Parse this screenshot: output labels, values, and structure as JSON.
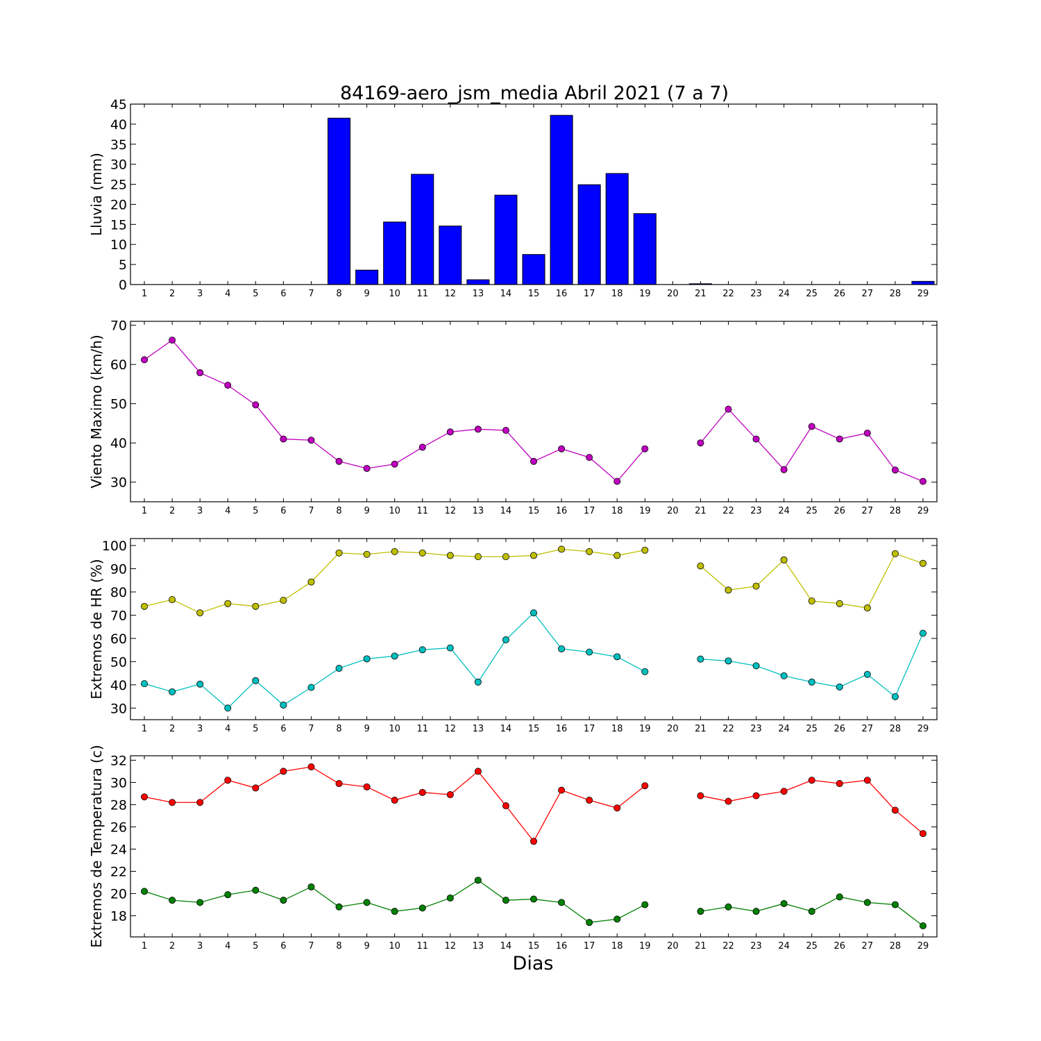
{
  "title": "84169-aero_jsm_media Abril 2021  (7 a 7)",
  "xlabel": "Dias",
  "colors": {
    "bar": "#0000ff",
    "wind": "#bf00bf",
    "hr_max": "#bfbf00",
    "hr_min": "#00bfbf",
    "temp_max": "#ff0000",
    "temp_min": "#008000"
  },
  "chart_data": [
    {
      "id": "rain",
      "type": "bar",
      "ylabel": "Lluvia (mm)",
      "ylim": [
        0,
        45
      ],
      "yticks": [
        0,
        5,
        10,
        15,
        20,
        25,
        30,
        35,
        40,
        45
      ],
      "categories": [
        "1",
        "2",
        "3",
        "4",
        "5",
        "6",
        "7",
        "8",
        "9",
        "10",
        "11",
        "12",
        "13",
        "14",
        "15",
        "16",
        "17",
        "18",
        "19",
        "20",
        "21",
        "22",
        "23",
        "24",
        "25",
        "26",
        "27",
        "28",
        "29"
      ],
      "values": [
        0,
        0,
        0,
        0,
        0,
        0,
        0,
        41.5,
        3.6,
        15.6,
        27.5,
        14.6,
        1.2,
        22.3,
        7.5,
        42.2,
        24.9,
        27.7,
        17.7,
        null,
        0.2,
        0,
        0,
        0,
        0,
        0,
        0,
        0,
        0.8
      ]
    },
    {
      "id": "wind",
      "type": "line",
      "ylabel": "Viento Maximo (km/h)",
      "ylim": [
        25,
        71
      ],
      "yticks": [
        30,
        40,
        50,
        60,
        70
      ],
      "x": [
        1,
        2,
        3,
        4,
        5,
        6,
        7,
        8,
        9,
        10,
        11,
        12,
        13,
        14,
        15,
        16,
        17,
        18,
        19,
        20,
        21,
        22,
        23,
        24,
        25,
        26,
        27,
        28,
        29
      ],
      "series": [
        {
          "key": "wind",
          "values": [
            61.2,
            66.2,
            57.9,
            54.7,
            49.7,
            41.0,
            40.7,
            35.3,
            33.5,
            34.6,
            38.9,
            42.8,
            43.5,
            43.2,
            35.3,
            38.5,
            36.3,
            30.2,
            38.5,
            null,
            40.0,
            48.6,
            41.0,
            33.2,
            44.2,
            41.0,
            42.5,
            33.1,
            30.2
          ]
        }
      ]
    },
    {
      "id": "hr",
      "type": "line",
      "ylabel": "Extremos de HR (%)",
      "ylim": [
        25,
        103
      ],
      "yticks": [
        30,
        40,
        50,
        60,
        70,
        80,
        90,
        100
      ],
      "x": [
        1,
        2,
        3,
        4,
        5,
        6,
        7,
        8,
        9,
        10,
        11,
        12,
        13,
        14,
        15,
        16,
        17,
        18,
        19,
        20,
        21,
        22,
        23,
        24,
        25,
        26,
        27,
        28,
        29
      ],
      "series": [
        {
          "key": "hr_max",
          "values": [
            73.8,
            76.7,
            71.0,
            75.0,
            73.8,
            76.4,
            84.3,
            96.8,
            96.2,
            97.4,
            96.8,
            95.7,
            95.2,
            95.2,
            95.7,
            98.4,
            97.4,
            95.7,
            98.0,
            null,
            91.2,
            80.8,
            82.5,
            93.8,
            76.1,
            75.0,
            73.1,
            96.5,
            92.3
          ]
        },
        {
          "key": "hr_min",
          "values": [
            40.5,
            37.0,
            40.3,
            30.0,
            41.8,
            31.3,
            38.9,
            47.1,
            51.2,
            52.4,
            55.1,
            55.9,
            41.2,
            59.4,
            71.0,
            55.5,
            54.1,
            52.1,
            45.7,
            null,
            51.1,
            50.3,
            48.2,
            43.9,
            41.2,
            39.1,
            44.5,
            34.9,
            62.2
          ]
        }
      ]
    },
    {
      "id": "temp",
      "type": "line",
      "ylabel": "Extremos de Temperatura (c)",
      "ylim": [
        16.1,
        32.4
      ],
      "yticks": [
        18,
        20,
        22,
        24,
        26,
        28,
        30,
        32
      ],
      "x": [
        1,
        2,
        3,
        4,
        5,
        6,
        7,
        8,
        9,
        10,
        11,
        12,
        13,
        14,
        15,
        16,
        17,
        18,
        19,
        20,
        21,
        22,
        23,
        24,
        25,
        26,
        27,
        28,
        29
      ],
      "series": [
        {
          "key": "temp_max",
          "values": [
            28.7,
            28.2,
            28.2,
            30.2,
            29.5,
            31.0,
            31.4,
            29.9,
            29.6,
            28.4,
            29.1,
            28.9,
            31.0,
            27.9,
            24.7,
            29.3,
            28.4,
            27.7,
            29.7,
            null,
            28.8,
            28.3,
            28.8,
            29.2,
            30.2,
            29.9,
            30.2,
            27.5,
            25.4
          ]
        },
        {
          "key": "temp_min",
          "values": [
            20.2,
            19.4,
            19.2,
            19.9,
            20.3,
            19.4,
            20.6,
            18.8,
            19.2,
            18.4,
            18.7,
            19.6,
            21.2,
            19.4,
            19.5,
            19.2,
            17.4,
            17.7,
            19.0,
            null,
            18.4,
            18.8,
            18.4,
            19.1,
            18.4,
            19.7,
            19.2,
            19.0,
            17.1
          ]
        }
      ]
    }
  ]
}
